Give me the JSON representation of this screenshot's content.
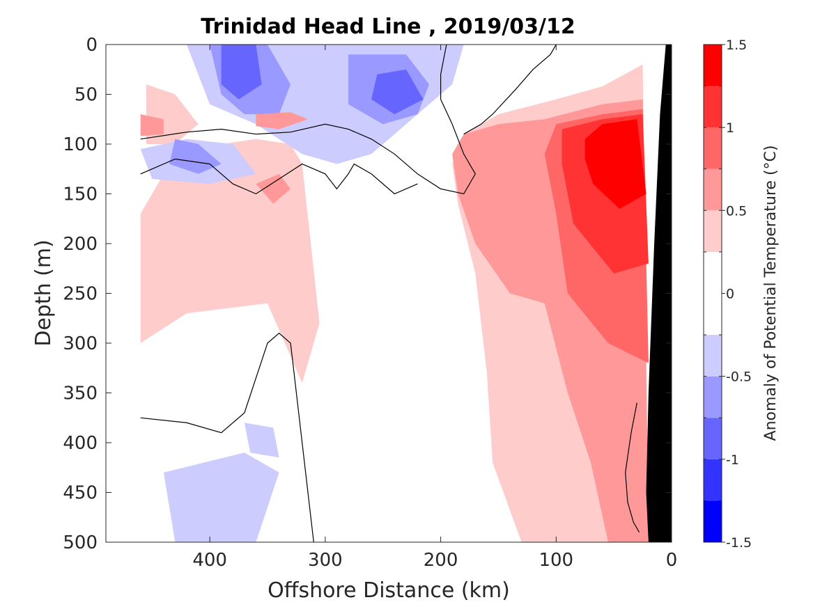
{
  "chart_data": {
    "type": "heatmap",
    "title": "Trinidad Head Line , 2019/03/12",
    "xlabel": "Offshore Distance (km)",
    "ylabel": "Depth (m)",
    "xlim": [
      490,
      0
    ],
    "ylim": [
      0,
      500
    ],
    "x_ticks": [
      "400",
      "300",
      "200",
      "100",
      "0"
    ],
    "x_tick_values": [
      400,
      300,
      200,
      100,
      0
    ],
    "y_ticks": [
      "0",
      "50",
      "100",
      "150",
      "200",
      "250",
      "300",
      "350",
      "400",
      "450",
      "500"
    ],
    "y_tick_values": [
      0,
      50,
      100,
      150,
      200,
      250,
      300,
      350,
      400,
      450,
      500
    ],
    "colorbar": {
      "label": "Anomaly of Potential Temperature (°C)",
      "tick_labels": [
        "1.5",
        "1",
        "0.5",
        "0",
        "-0.5",
        "-1",
        "-1.5"
      ],
      "tick_values": [
        1.5,
        1,
        0.5,
        0,
        -0.5,
        -1,
        -1.5
      ],
      "levels": [
        -1.5,
        -1.25,
        -1.0,
        -0.75,
        -0.5,
        -0.25,
        0.25,
        0.5,
        0.75,
        1.0,
        1.25,
        1.5
      ],
      "colors": [
        "#0000ff",
        "#3333ff",
        "#6666ff",
        "#9999ff",
        "#ccccff",
        "#ffffff",
        "#ffcccc",
        "#ff9999",
        "#ff6666",
        "#ff3333",
        "#ff0000"
      ]
    },
    "grid": false,
    "regions": [
      {
        "level": 0.375,
        "points": [
          [
            460,
            170
          ],
          [
            440,
            130
          ],
          [
            420,
            115
          ],
          [
            390,
            100
          ],
          [
            360,
            95
          ],
          [
            330,
            100
          ],
          [
            320,
            120
          ],
          [
            305,
            280
          ],
          [
            320,
            340
          ],
          [
            350,
            260
          ],
          [
            420,
            270
          ],
          [
            460,
            300
          ]
        ]
      },
      {
        "level": 0.375,
        "points": [
          [
            180,
            90
          ],
          [
            150,
            70
          ],
          [
            100,
            55
          ],
          [
            60,
            42
          ],
          [
            25,
            20
          ],
          [
            20,
            500
          ],
          [
            60,
            500
          ],
          [
            100,
            500
          ],
          [
            130,
            500
          ],
          [
            155,
            420
          ],
          [
            160,
            330
          ],
          [
            170,
            230
          ],
          [
            185,
            160
          ],
          [
            190,
            120
          ]
        ]
      },
      {
        "level": 0.375,
        "points": [
          [
            455,
            40
          ],
          [
            430,
            50
          ],
          [
            410,
            80
          ],
          [
            430,
            100
          ],
          [
            455,
            100
          ]
        ]
      },
      {
        "level": 0.625,
        "points": [
          [
            180,
            90
          ],
          [
            150,
            80
          ],
          [
            110,
            75
          ],
          [
            60,
            60
          ],
          [
            25,
            55
          ],
          [
            20,
            500
          ],
          [
            55,
            500
          ],
          [
            70,
            420
          ],
          [
            90,
            350
          ],
          [
            110,
            260
          ],
          [
            140,
            250
          ],
          [
            170,
            200
          ],
          [
            185,
            150
          ],
          [
            190,
            110
          ]
        ]
      },
      {
        "level": 0.875,
        "points": [
          [
            100,
            80
          ],
          [
            60,
            70
          ],
          [
            25,
            65
          ],
          [
            20,
            320
          ],
          [
            55,
            300
          ],
          [
            90,
            250
          ],
          [
            100,
            170
          ],
          [
            110,
            110
          ]
        ]
      },
      {
        "level": 1.125,
        "points": [
          [
            95,
            85
          ],
          [
            60,
            75
          ],
          [
            25,
            70
          ],
          [
            20,
            220
          ],
          [
            50,
            230
          ],
          [
            85,
            180
          ],
          [
            95,
            120
          ]
        ]
      },
      {
        "level": 1.375,
        "points": [
          [
            75,
            95
          ],
          [
            60,
            80
          ],
          [
            30,
            75
          ],
          [
            22,
            150
          ],
          [
            45,
            165
          ],
          [
            68,
            140
          ],
          [
            75,
            115
          ]
        ]
      },
      {
        "level": -0.375,
        "points": [
          [
            420,
            0
          ],
          [
            260,
            0
          ],
          [
            180,
            0
          ],
          [
            190,
            40
          ],
          [
            210,
            60
          ],
          [
            240,
            90
          ],
          [
            260,
            110
          ],
          [
            290,
            120
          ],
          [
            320,
            110
          ],
          [
            360,
            80
          ],
          [
            400,
            60
          ]
        ]
      },
      {
        "level": -0.375,
        "points": [
          [
            460,
            105
          ],
          [
            420,
            95
          ],
          [
            380,
            100
          ],
          [
            360,
            130
          ],
          [
            400,
            140
          ],
          [
            450,
            135
          ]
        ]
      },
      {
        "level": -0.375,
        "points": [
          [
            440,
            430
          ],
          [
            370,
            410
          ],
          [
            340,
            430
          ],
          [
            360,
            500
          ],
          [
            430,
            500
          ]
        ]
      },
      {
        "level": -0.375,
        "points": [
          [
            370,
            380
          ],
          [
            345,
            385
          ],
          [
            340,
            415
          ],
          [
            365,
            410
          ]
        ]
      },
      {
        "level": -0.625,
        "points": [
          [
            400,
            0
          ],
          [
            350,
            0
          ],
          [
            330,
            40
          ],
          [
            340,
            70
          ],
          [
            370,
            70
          ],
          [
            390,
            50
          ]
        ]
      },
      {
        "level": -0.625,
        "points": [
          [
            280,
            10
          ],
          [
            230,
            10
          ],
          [
            210,
            40
          ],
          [
            220,
            70
          ],
          [
            250,
            80
          ],
          [
            280,
            60
          ]
        ]
      },
      {
        "level": -0.625,
        "points": [
          [
            430,
            95
          ],
          [
            410,
            100
          ],
          [
            390,
            120
          ],
          [
            410,
            130
          ],
          [
            435,
            120
          ]
        ]
      },
      {
        "level": -0.875,
        "points": [
          [
            390,
            0
          ],
          [
            360,
            0
          ],
          [
            355,
            40
          ],
          [
            375,
            55
          ],
          [
            390,
            40
          ]
        ]
      },
      {
        "level": -0.875,
        "points": [
          [
            255,
            30
          ],
          [
            230,
            25
          ],
          [
            215,
            55
          ],
          [
            240,
            70
          ],
          [
            260,
            55
          ]
        ]
      },
      {
        "level": 0.625,
        "points": [
          [
            460,
            70
          ],
          [
            440,
            75
          ],
          [
            440,
            90
          ],
          [
            460,
            92
          ]
        ]
      },
      {
        "level": 0.625,
        "points": [
          [
            360,
            140
          ],
          [
            340,
            130
          ],
          [
            330,
            145
          ],
          [
            345,
            160
          ]
        ]
      },
      {
        "level": 0.625,
        "points": [
          [
            360,
            70
          ],
          [
            330,
            68
          ],
          [
            315,
            75
          ],
          [
            340,
            85
          ],
          [
            360,
            82
          ]
        ]
      }
    ],
    "zero_contours": [
      [
        [
          460,
          95
        ],
        [
          420,
          88
        ],
        [
          390,
          85
        ],
        [
          360,
          90
        ],
        [
          330,
          88
        ],
        [
          300,
          80
        ],
        [
          280,
          85
        ],
        [
          260,
          95
        ],
        [
          240,
          110
        ],
        [
          220,
          130
        ],
        [
          200,
          145
        ],
        [
          180,
          150
        ],
        [
          170,
          130
        ],
        [
          180,
          110
        ],
        [
          190,
          80
        ],
        [
          200,
          55
        ],
        [
          200,
          30
        ],
        [
          195,
          0
        ]
      ],
      [
        [
          460,
          130
        ],
        [
          430,
          115
        ],
        [
          400,
          120
        ],
        [
          380,
          140
        ],
        [
          360,
          150
        ],
        [
          340,
          135
        ],
        [
          320,
          120
        ],
        [
          300,
          130
        ],
        [
          290,
          145
        ],
        [
          280,
          130
        ],
        [
          275,
          120
        ],
        [
          260,
          130
        ],
        [
          240,
          150
        ],
        [
          220,
          140
        ]
      ],
      [
        [
          460,
          375
        ],
        [
          420,
          380
        ],
        [
          390,
          390
        ],
        [
          370,
          370
        ],
        [
          350,
          300
        ],
        [
          340,
          290
        ],
        [
          330,
          300
        ],
        [
          320,
          400
        ],
        [
          310,
          500
        ]
      ],
      [
        [
          180,
          90
        ],
        [
          165,
          80
        ],
        [
          155,
          70
        ],
        [
          135,
          45
        ],
        [
          120,
          25
        ],
        [
          105,
          10
        ],
        [
          100,
          0
        ]
      ],
      [
        [
          30,
          360
        ],
        [
          35,
          390
        ],
        [
          40,
          430
        ],
        [
          38,
          460
        ],
        [
          33,
          480
        ],
        [
          28,
          490
        ]
      ]
    ],
    "coastline": [
      [
        20,
        500
      ],
      [
        0,
        500
      ],
      [
        0,
        0
      ],
      [
        5,
        0
      ],
      [
        10,
        70
      ],
      [
        15,
        200
      ],
      [
        20,
        350
      ],
      [
        22,
        450
      ]
    ]
  }
}
